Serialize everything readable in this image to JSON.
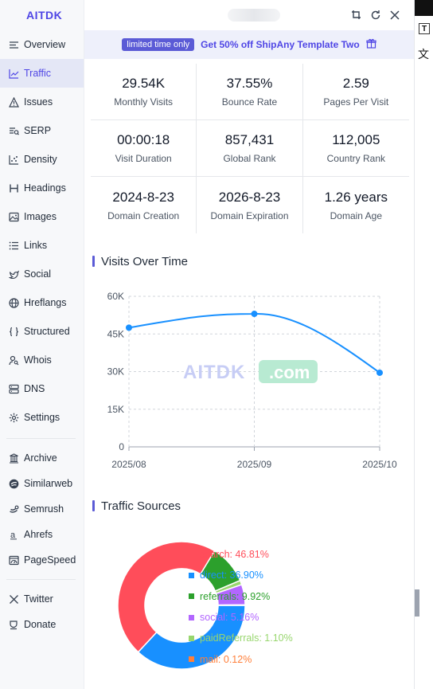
{
  "sidebar": {
    "brand": "AITDK",
    "items": [
      {
        "label": "Overview",
        "icon": "list-icon",
        "active": false
      },
      {
        "label": "Traffic",
        "icon": "line-chart-icon",
        "active": true
      },
      {
        "label": "Issues",
        "icon": "warning-icon",
        "active": false
      },
      {
        "label": "SERP",
        "icon": "serp-icon",
        "active": false
      },
      {
        "label": "Density",
        "icon": "scatter-icon",
        "active": false
      },
      {
        "label": "Headings",
        "icon": "heading-icon",
        "active": false
      },
      {
        "label": "Images",
        "icon": "image-icon",
        "active": false
      },
      {
        "label": "Links",
        "icon": "links-list-icon",
        "active": false
      },
      {
        "label": "Social",
        "icon": "bird-icon",
        "active": false
      },
      {
        "label": "Hreflangs",
        "icon": "globe-icon",
        "active": false
      },
      {
        "label": "Structured",
        "icon": "braces-icon",
        "active": false
      },
      {
        "label": "Whois",
        "icon": "user-search-icon",
        "active": false
      },
      {
        "label": "DNS",
        "icon": "server-icon",
        "active": false
      },
      {
        "label": "Settings",
        "icon": "gear-icon",
        "active": false
      }
    ],
    "tools": [
      {
        "label": "Archive",
        "icon": "archive-icon"
      },
      {
        "label": "Similarweb",
        "icon": "similarweb-icon"
      },
      {
        "label": "Semrush",
        "icon": "semrush-icon"
      },
      {
        "label": "Ahrefs",
        "icon": "ahrefs-icon"
      },
      {
        "label": "PageSpeed",
        "icon": "pagespeed-icon"
      }
    ],
    "social": [
      {
        "label": "Twitter",
        "icon": "x-icon"
      },
      {
        "label": "Donate",
        "icon": "cup-icon"
      }
    ]
  },
  "promo": {
    "badge": "limited time only",
    "offer": "Get 50% off ShipAny Template Two"
  },
  "stats": [
    {
      "value": "29.54K",
      "label": "Monthly Visits"
    },
    {
      "value": "37.55%",
      "label": "Bounce Rate"
    },
    {
      "value": "2.59",
      "label": "Pages Per Visit"
    },
    {
      "value": "00:00:18",
      "label": "Visit Duration"
    },
    {
      "value": "857,431",
      "label": "Global Rank"
    },
    {
      "value": "112,005",
      "label": "Country Rank"
    },
    {
      "value": "2024-8-23",
      "label": "Domain Creation"
    },
    {
      "value": "2026-8-23",
      "label": "Domain Expiration"
    },
    {
      "value": "1.26 years",
      "label": "Domain Age"
    }
  ],
  "visits_section_title": "Visits Over Time",
  "sources_section_title": "Traffic Sources",
  "watermark": {
    "part1": "AITDK",
    "part2": ".com"
  },
  "right_strip": {
    "t_button": "T",
    "zh_char": "文"
  },
  "chart_data": [
    {
      "type": "line",
      "title": "Visits Over Time",
      "categories": [
        "2025/08",
        "2025/09",
        "2025/10"
      ],
      "values": [
        47500,
        53000,
        29540
      ],
      "ylim": [
        0,
        60000
      ],
      "yticks": [
        "0",
        "15K",
        "30K",
        "45K",
        "60K"
      ],
      "grid": true,
      "color": "#1890ff"
    },
    {
      "type": "pie",
      "title": "Traffic Sources",
      "slices": [
        {
          "name": "search",
          "value": 46.81,
          "label": "search: 46.81%",
          "color": "#ff4d5a"
        },
        {
          "name": "direct",
          "value": 36.9,
          "label": "direct: 36.90%",
          "color": "#1890ff"
        },
        {
          "name": "referrals",
          "value": 9.92,
          "label": "referrals: 9.92%",
          "color": "#2ca02c"
        },
        {
          "name": "social",
          "value": 5.16,
          "label": "social: 5.16%",
          "color": "#b266ff"
        },
        {
          "name": "paidReferrals",
          "value": 1.1,
          "label": "paidReferrals: 1.10%",
          "color": "#98d66e"
        },
        {
          "name": "mail",
          "value": 0.12,
          "label": "mail: 0.12%",
          "color": "#ff7f3a"
        }
      ]
    }
  ]
}
